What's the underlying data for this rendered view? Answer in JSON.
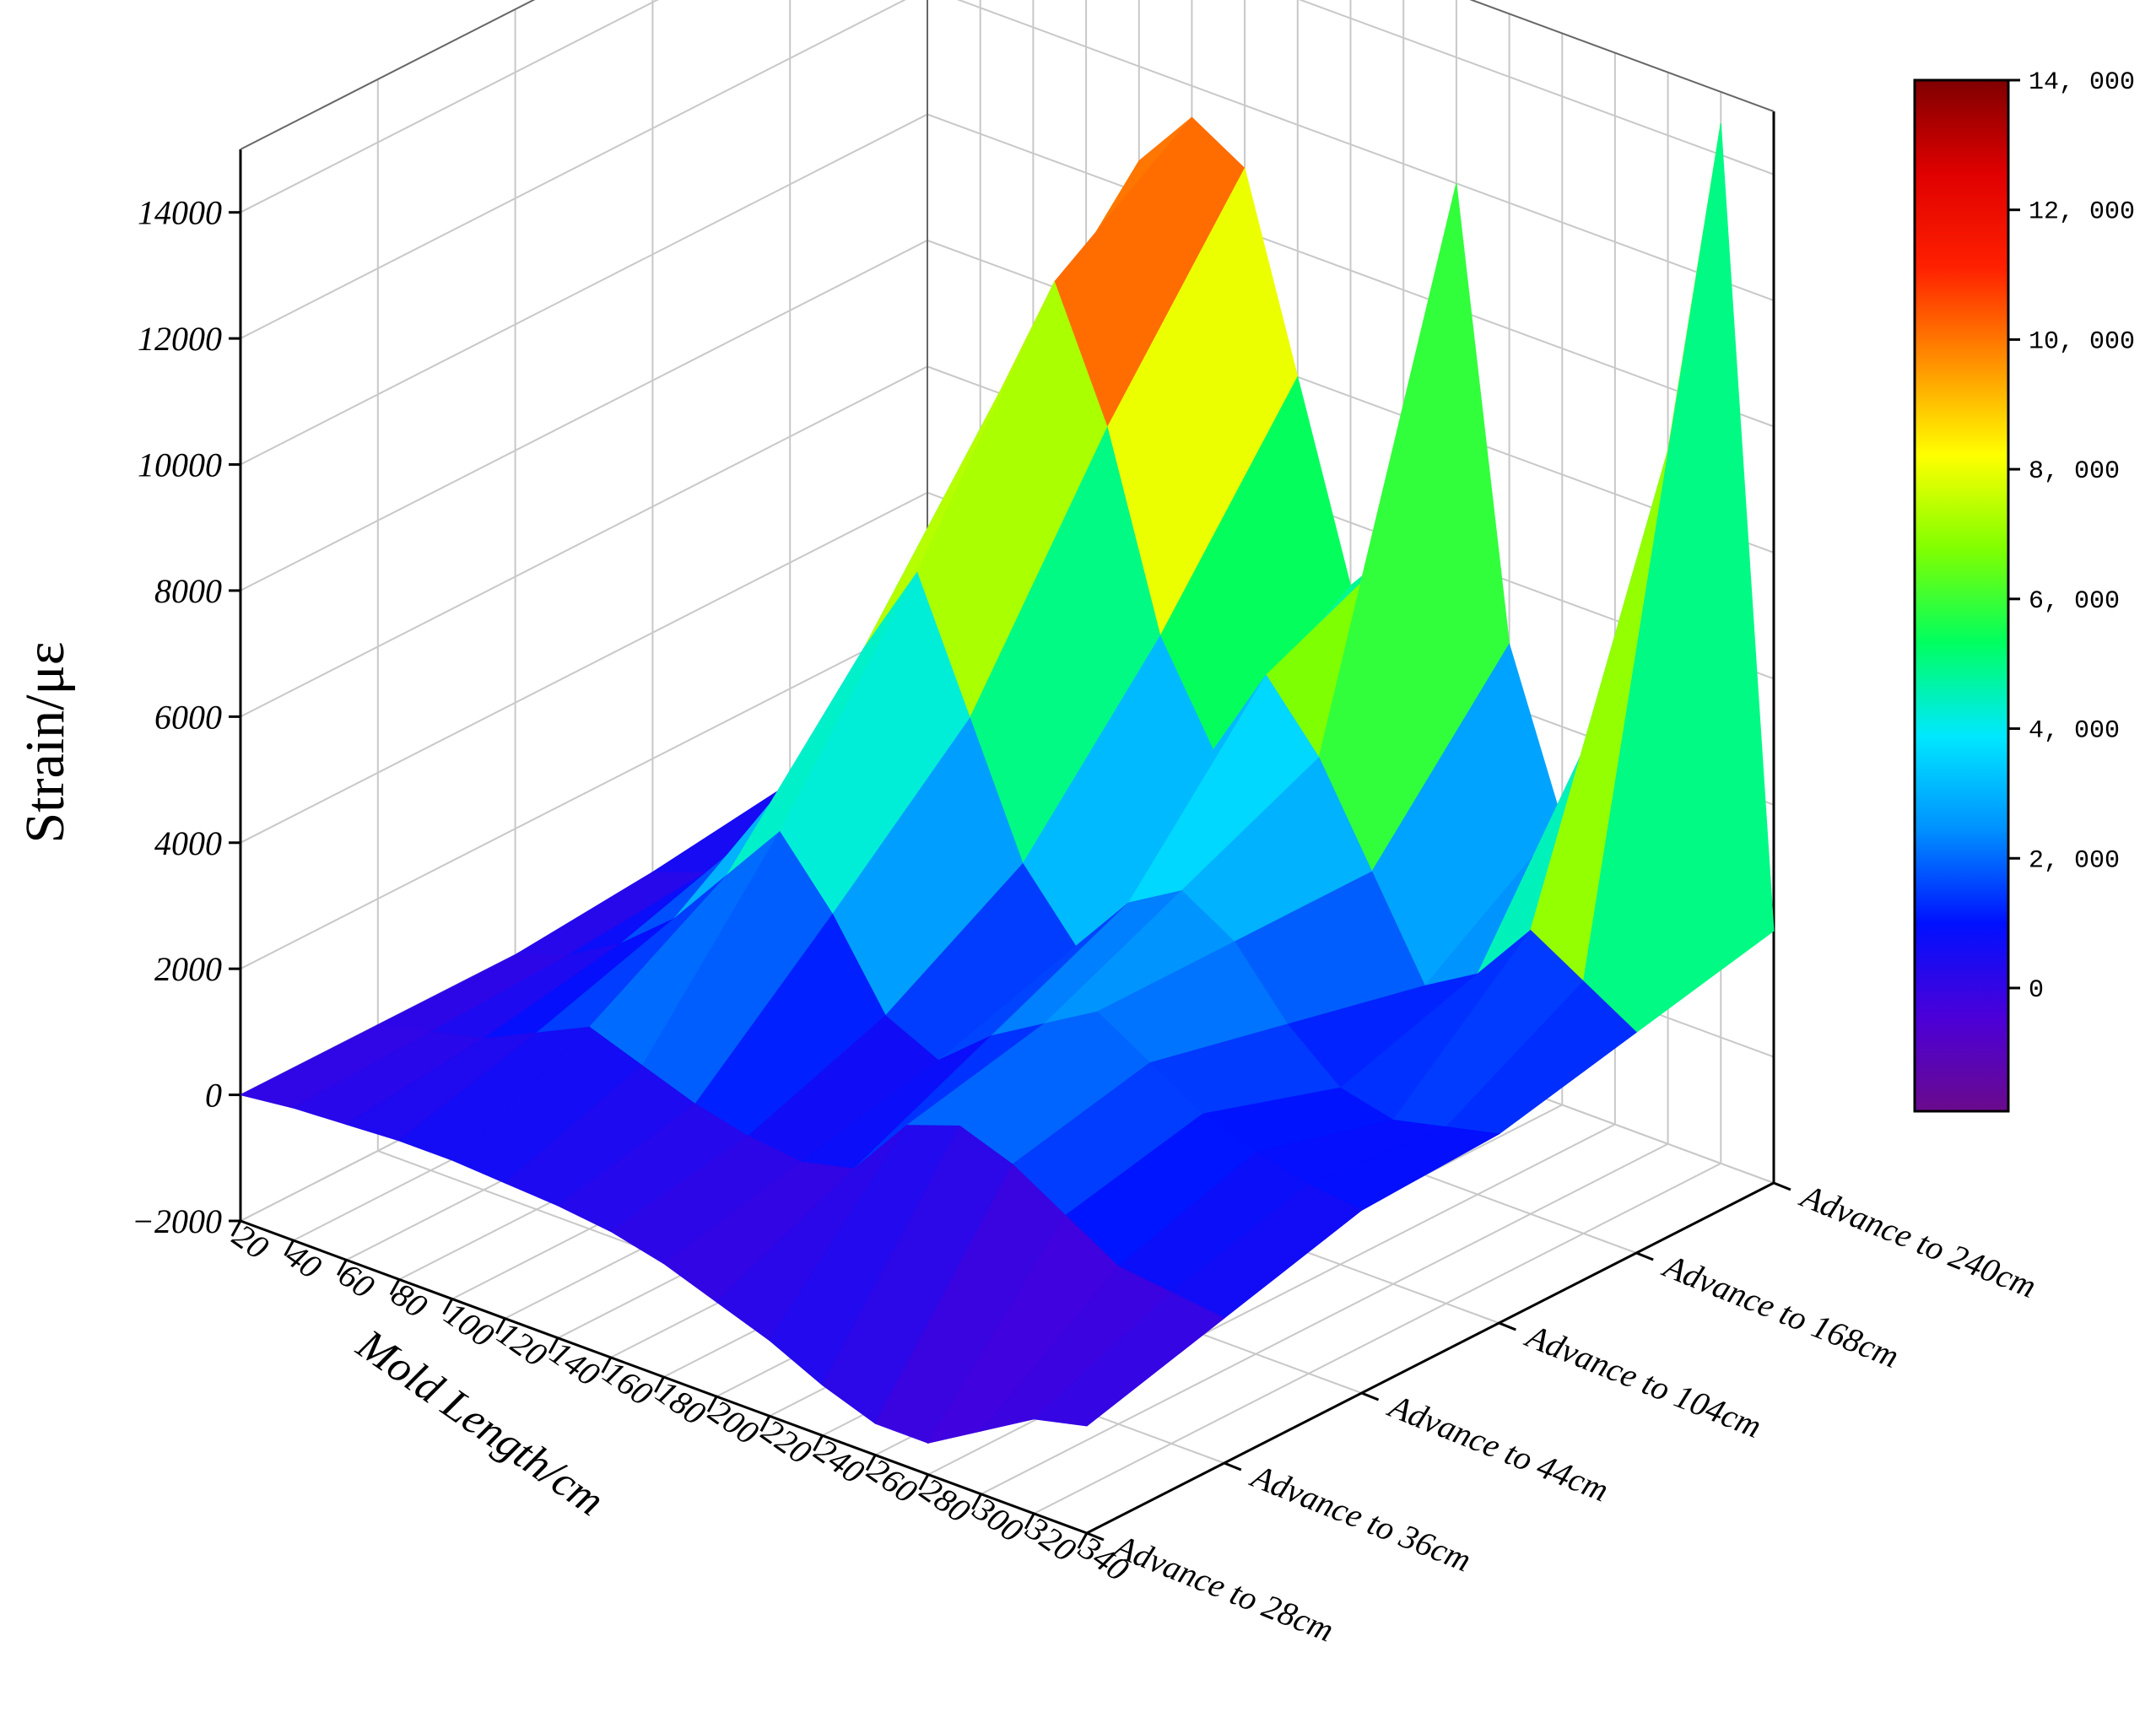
{
  "chart_data": {
    "type": "surface",
    "z_label": "Strain/με",
    "x_label": "Mold Length/cm",
    "x": [
      20,
      40,
      60,
      80,
      100,
      120,
      140,
      160,
      180,
      200,
      220,
      240,
      260,
      280,
      300,
      320,
      340
    ],
    "y": [
      "Advance to 28cm",
      "Advance to 36cm",
      "Advance to 44cm",
      "Advance to 104cm",
      "Advance to 168cm",
      "Advance to 240cm"
    ],
    "z": [
      [
        0,
        100,
        150,
        200,
        200,
        150,
        100,
        0,
        -200,
        -500,
        -800,
        -1200,
        -1500,
        -1500,
        -1000,
        -500,
        -300
      ],
      [
        0,
        200,
        400,
        800,
        1200,
        900,
        600,
        400,
        300,
        500,
        1500,
        1800,
        1500,
        1000,
        500,
        400,
        300
      ],
      [
        0,
        300,
        800,
        1500,
        2500,
        3500,
        2500,
        1200,
        800,
        1500,
        2000,
        2500,
        2000,
        1500,
        1200,
        1000,
        900
      ],
      [
        200,
        500,
        1500,
        3000,
        5000,
        6500,
        4500,
        2500,
        1500,
        2500,
        3000,
        2500,
        1500,
        800,
        600,
        800,
        1000
      ],
      [
        500,
        1000,
        2500,
        5000,
        8000,
        10000,
        8000,
        5000,
        3500,
        5000,
        4000,
        2500,
        1000,
        1500,
        2500,
        2000,
        1500
      ],
      [
        2000,
        2500,
        4000,
        7000,
        10500,
        11500,
        11000,
        8000,
        5000,
        6000,
        12000,
        5000,
        2500,
        5000,
        9000,
        14500,
        2000
      ]
    ],
    "xlim": [
      20,
      340
    ],
    "zlim": [
      -2000,
      15000
    ],
    "zticks": [
      {
        "value": -2000,
        "label": "−2000"
      },
      0,
      2000,
      4000,
      6000,
      8000,
      10000,
      12000,
      14000
    ],
    "clim": [
      -1900,
      14000
    ],
    "colorbar_ticks": [
      0,
      {
        "value": 2000,
        "label": "2, 000"
      },
      {
        "value": 4000,
        "label": "4, 000"
      },
      {
        "value": 6000,
        "label": "6, 000"
      },
      {
        "value": 8000,
        "label": "8, 000"
      },
      {
        "value": 10000,
        "label": "10, 000"
      },
      {
        "value": 12000,
        "label": "12, 000"
      },
      {
        "value": 14000,
        "label": "14, 000"
      }
    ],
    "colormap": [
      "#6a0a8c",
      "#4b00d8",
      "#0010ff",
      "#0090ff",
      "#00e8ff",
      "#00ff60",
      "#80ff00",
      "#ffff00",
      "#ff9000",
      "#ff2000",
      "#e00000",
      "#800000"
    ],
    "grid": true
  }
}
